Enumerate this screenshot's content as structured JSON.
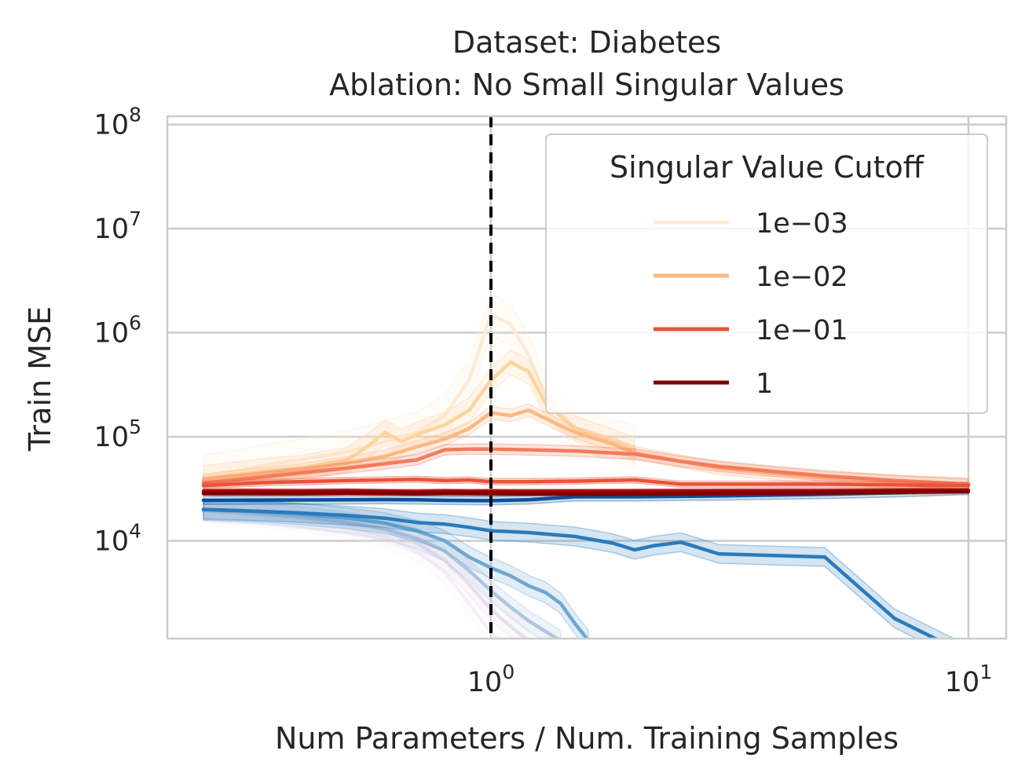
{
  "chart_data": {
    "type": "line",
    "title_line1": "Dataset: Diabetes",
    "title_line2": "Ablation: No Small Singular Values",
    "xlabel": "Num Parameters / Num. Training Samples",
    "ylabel": "Train MSE",
    "xscale": "log",
    "yscale": "log",
    "xlim": [
      0.21,
      12
    ],
    "ylim": [
      1150,
      120000000
    ],
    "xticks": [
      {
        "value": 1,
        "base": "10",
        "exp": "0"
      },
      {
        "value": 10,
        "base": "10",
        "exp": "1"
      }
    ],
    "yticks": [
      {
        "value": 10000,
        "base": "10",
        "exp": "4"
      },
      {
        "value": 100000,
        "base": "10",
        "exp": "5"
      },
      {
        "value": 1000000,
        "base": "10",
        "exp": "6"
      },
      {
        "value": 10000000,
        "base": "10",
        "exp": "7"
      },
      {
        "value": 100000000,
        "base": "10",
        "exp": "8"
      }
    ],
    "vline_x": 1,
    "grid": true,
    "legend": {
      "title": "Singular Value Cutoff",
      "placement": "top-right",
      "entries": [
        {
          "label": "1e−03",
          "color": "#fdebd7"
        },
        {
          "label": "1e−02",
          "color": "#fcb883"
        },
        {
          "label": "1e−01",
          "color": "#e9533a"
        },
        {
          "label": "1",
          "color": "#7f0000"
        }
      ]
    },
    "series": [
      {
        "color": "#f2e6f4",
        "opacity": 0.6,
        "x": [
          0.25,
          0.3,
          0.35,
          0.4,
          0.5,
          0.6,
          0.7,
          0.8,
          0.9,
          1.0,
          1.05
        ],
        "y": [
          19000,
          18000,
          16500,
          15500,
          13500,
          11000,
          8000,
          5000,
          2500,
          1300,
          1100
        ],
        "band": 0.1
      },
      {
        "color": "#dcc9e2",
        "opacity": 0.6,
        "x": [
          0.25,
          0.3,
          0.35,
          0.4,
          0.5,
          0.6,
          0.7,
          0.8,
          0.9,
          1.0,
          1.1,
          1.2
        ],
        "y": [
          19500,
          18500,
          17500,
          16500,
          14500,
          12500,
          9500,
          6500,
          3800,
          2200,
          1500,
          1100
        ],
        "band": 0.1
      },
      {
        "color": "#a8bfdd",
        "opacity": 0.9,
        "x": [
          0.25,
          0.3,
          0.35,
          0.4,
          0.5,
          0.6,
          0.7,
          0.8,
          0.9,
          1.0,
          1.1,
          1.2,
          1.3,
          1.4
        ],
        "y": [
          19800,
          19000,
          18000,
          17000,
          15000,
          13000,
          10500,
          8000,
          5200,
          3300,
          2300,
          1700,
          1350,
          1100
        ],
        "band": 0.1
      },
      {
        "color": "#6da7d0",
        "opacity": 1,
        "x": [
          0.25,
          0.3,
          0.35,
          0.4,
          0.5,
          0.6,
          0.7,
          0.8,
          0.9,
          1.0,
          1.1,
          1.2,
          1.3,
          1.4,
          1.5,
          1.6
        ],
        "y": [
          20000,
          19500,
          18800,
          18000,
          16500,
          14800,
          12500,
          10000,
          7000,
          5500,
          4600,
          3700,
          3200,
          2500,
          1600,
          1100
        ],
        "band": 0.1
      },
      {
        "color": "#2b7bba",
        "opacity": 1,
        "x": [
          0.25,
          0.3,
          0.35,
          0.4,
          0.5,
          0.6,
          0.7,
          0.8,
          0.9,
          1.0,
          1.2,
          1.5,
          1.8,
          2.0,
          2.2,
          2.5,
          3.0,
          4.0,
          5.0,
          7.0,
          10.0
        ],
        "y": [
          20000,
          19500,
          19000,
          18500,
          17500,
          16500,
          15000,
          14500,
          13500,
          12500,
          12000,
          11000,
          9500,
          8200,
          9000,
          9700,
          7500,
          7200,
          7000,
          1800,
          800
        ],
        "band": 0.09
      },
      {
        "color": "#08519c",
        "opacity": 1,
        "x": [
          0.25,
          0.3,
          0.4,
          0.5,
          0.6,
          0.7,
          0.8,
          0.9,
          1.0,
          1.2,
          1.5,
          2.0,
          3.0,
          5.0,
          7.0,
          10.0
        ],
        "y": [
          24500,
          24600,
          24700,
          24800,
          24900,
          24800,
          24500,
          24400,
          24300,
          24800,
          26500,
          26500,
          27000,
          28000,
          29000,
          30500
        ],
        "band": 0.04
      },
      {
        "color": "#fdebd7",
        "opacity": 1,
        "x": [
          0.25,
          0.3,
          0.35,
          0.4,
          0.5,
          0.6,
          0.7,
          0.8,
          0.9,
          1.0,
          1.1,
          1.2,
          1.3,
          1.5,
          2.0
        ],
        "y": [
          42000,
          48000,
          55000,
          60000,
          72000,
          90000,
          110000,
          160000,
          350000,
          1500000,
          1200000,
          600000,
          250000,
          120000,
          80000
        ],
        "band": 0.2
      },
      {
        "color": "#fdd49e",
        "opacity": 1,
        "x": [
          0.25,
          0.3,
          0.35,
          0.4,
          0.5,
          0.55,
          0.6,
          0.65,
          0.7,
          0.8,
          0.9,
          1.0,
          1.1,
          1.2,
          1.3,
          1.5,
          1.8,
          2.0
        ],
        "y": [
          40000,
          44000,
          48000,
          50000,
          60000,
          80000,
          110000,
          90000,
          105000,
          130000,
          180000,
          350000,
          520000,
          420000,
          210000,
          120000,
          90000,
          75000
        ],
        "band": 0.12
      },
      {
        "color": "#fcb883",
        "opacity": 1,
        "x": [
          0.25,
          0.3,
          0.35,
          0.4,
          0.5,
          0.6,
          0.7,
          0.8,
          0.9,
          1.0,
          1.1,
          1.2,
          1.3,
          1.5,
          1.8,
          2.0,
          2.5,
          3.0,
          4.0,
          5.0,
          7.0,
          10.0
        ],
        "y": [
          38000,
          42000,
          45000,
          48000,
          56000,
          65000,
          80000,
          95000,
          120000,
          170000,
          160000,
          180000,
          150000,
          110000,
          85000,
          70000,
          58000,
          50000,
          44000,
          40000,
          37000,
          35000
        ],
        "band": 0.06
      },
      {
        "color": "#f47a5c",
        "opacity": 1,
        "x": [
          0.25,
          0.3,
          0.35,
          0.4,
          0.5,
          0.6,
          0.7,
          0.8,
          0.9,
          1.0,
          1.2,
          1.5,
          2.0,
          2.5,
          3.0,
          4.0,
          5.0,
          7.0,
          10.0
        ],
        "y": [
          36000,
          39000,
          42000,
          45000,
          50000,
          55000,
          60000,
          75000,
          76000,
          76000,
          75000,
          73000,
          68000,
          58000,
          52000,
          46000,
          42000,
          38000,
          35000
        ],
        "band": 0.05
      },
      {
        "color": "#e9533a",
        "opacity": 1,
        "x": [
          0.25,
          0.3,
          0.35,
          0.4,
          0.5,
          0.6,
          0.7,
          0.8,
          0.9,
          1.0,
          1.2,
          1.5,
          2.0,
          2.5,
          3.0,
          5.0,
          7.0,
          10.0
        ],
        "y": [
          34000,
          35500,
          36500,
          37000,
          38000,
          38500,
          39000,
          38000,
          38500,
          37000,
          37000,
          37500,
          38500,
          35000,
          35000,
          35000,
          34500,
          34000
        ],
        "band": 0.03
      },
      {
        "color": "#b30000",
        "opacity": 1,
        "x": [
          0.25,
          0.3,
          0.4,
          0.5,
          0.6,
          0.7,
          0.8,
          0.9,
          1.0,
          1.2,
          1.5,
          2.0,
          3.0,
          5.0,
          7.0,
          10.0
        ],
        "y": [
          30000,
          30200,
          30100,
          30300,
          30000,
          29800,
          30100,
          29900,
          30000,
          29900,
          30000,
          30100,
          30200,
          30300,
          30400,
          30500
        ],
        "band": 0.02
      },
      {
        "color": "#7f0000",
        "opacity": 1,
        "x": [
          0.25,
          0.3,
          0.4,
          0.5,
          0.6,
          0.7,
          0.8,
          0.9,
          1.0,
          1.2,
          1.5,
          2.0,
          3.0,
          5.0,
          7.0,
          10.0
        ],
        "y": [
          28500,
          28600,
          28500,
          28800,
          28600,
          28400,
          28600,
          28500,
          28400,
          28300,
          28200,
          28300,
          28600,
          29000,
          29400,
          29800
        ],
        "band": 0.02
      }
    ]
  }
}
